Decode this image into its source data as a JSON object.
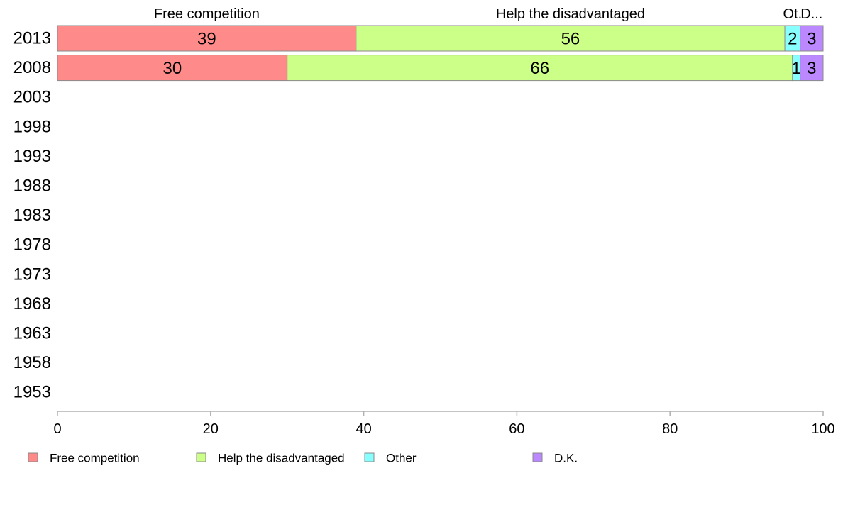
{
  "chart_data": {
    "type": "bar",
    "orientation": "horizontal",
    "stacked": true,
    "categories": [
      "2013",
      "2008",
      "2003",
      "1998",
      "1993",
      "1988",
      "1983",
      "1978",
      "1973",
      "1968",
      "1963",
      "1958",
      "1953"
    ],
    "series": [
      {
        "name": "Free competition",
        "short_label": "Free competition",
        "color": "#ff8a8a",
        "values": [
          39,
          30,
          null,
          null,
          null,
          null,
          null,
          null,
          null,
          null,
          null,
          null,
          null
        ]
      },
      {
        "name": "Help the disadvantaged",
        "short_label": "Help the disadvantaged",
        "color": "#ccff88",
        "values": [
          56,
          66,
          null,
          null,
          null,
          null,
          null,
          null,
          null,
          null,
          null,
          null,
          null
        ]
      },
      {
        "name": "Other",
        "short_label": "Ot.",
        "color": "#88ffff",
        "values": [
          2,
          1,
          null,
          null,
          null,
          null,
          null,
          null,
          null,
          null,
          null,
          null,
          null
        ]
      },
      {
        "name": "D.K.",
        "short_label": "D...",
        "color": "#bb88ff",
        "values": [
          3,
          3,
          null,
          null,
          null,
          null,
          null,
          null,
          null,
          null,
          null,
          null,
          null
        ]
      }
    ],
    "xlim": [
      0,
      100
    ],
    "xticks": [
      0,
      20,
      40,
      60,
      80,
      100
    ],
    "grid": false,
    "legend": "bottom-left"
  }
}
